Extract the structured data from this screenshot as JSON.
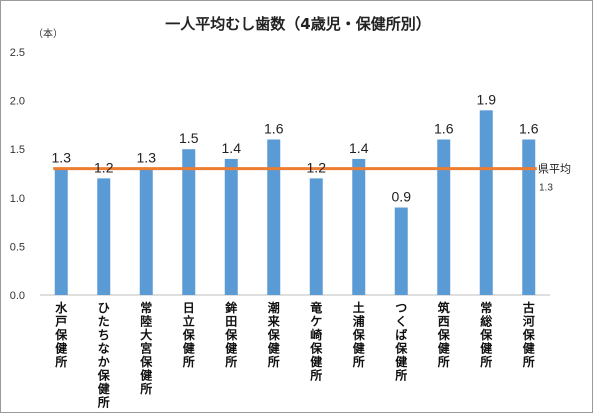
{
  "chart_data": {
    "type": "bar",
    "title": "一人平均むし歯数（4歳児・保健所別）",
    "unit_label": "（本）",
    "categories": [
      "水戸保健所",
      "ひたちなか保健所",
      "常陸大宮保健所",
      "日立保健所",
      "鉾田保健所",
      "潮来保健所",
      "竜ケ崎保健所",
      "土浦保健所",
      "つくば保健所",
      "筑西保健所",
      "常総保健所",
      "古河保健所"
    ],
    "values": [
      1.3,
      1.2,
      1.3,
      1.5,
      1.4,
      1.6,
      1.2,
      1.4,
      0.9,
      1.6,
      1.9,
      1.6
    ],
    "data_labels": [
      "1.3",
      "1.2",
      "1.3",
      "1.5",
      "1.4",
      "1.6",
      "1.2",
      "1.4",
      "0.9",
      "1.6",
      "1.9",
      "1.6"
    ],
    "ylim": [
      0,
      2.5
    ],
    "yticks": [
      "0.0",
      "0.5",
      "1.0",
      "1.5",
      "2.0",
      "2.5"
    ],
    "reference_line": {
      "label": "県平均",
      "value": 1.3,
      "value_label": "1.3",
      "color": "#ED7D31"
    },
    "bar_color": "#5B9BD5",
    "grid": false
  }
}
